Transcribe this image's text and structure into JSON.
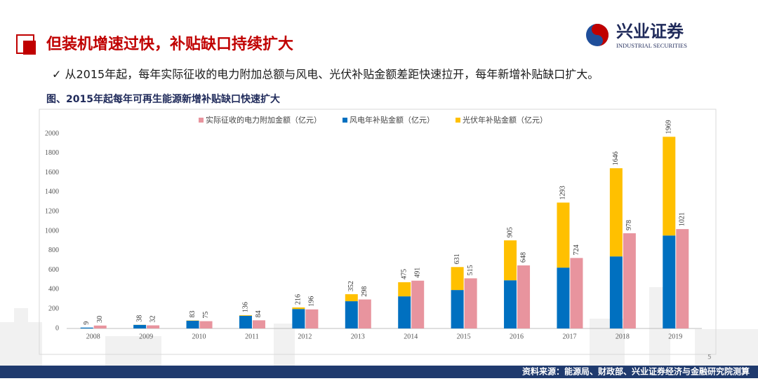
{
  "header": {
    "title": "但装机增速过快，补贴缺口持续扩大",
    "logo_name": "兴业证券",
    "logo_en": "INDUSTRIAL SECURITIES"
  },
  "bullet": "✓ 从2015年起，每年实际征收的电力附加总额与风电、光伏补贴金额差距快速拉开，每年新增补贴缺口扩大。",
  "chart_data": {
    "type": "bar",
    "title": "图、2015年起每年可再生能源新增补贴缺口快速扩大",
    "categories": [
      "2008",
      "2009",
      "2010",
      "2011",
      "2012",
      "2013",
      "2014",
      "2015",
      "2016",
      "2017",
      "2018",
      "2019"
    ],
    "series": [
      {
        "name": "实际征收的电力附加金额（亿元）",
        "color": "#e8949e",
        "values": [
          30,
          32,
          75,
          84,
          196,
          298,
          491,
          515,
          648,
          724,
          978,
          1021
        ]
      },
      {
        "name": "风电年补贴金额（亿元）",
        "color": "#0070c0",
        "stack": "subsidy",
        "values": [
          9,
          37,
          80,
          130,
          200,
          280,
          330,
          395,
          495,
          625,
          740,
          955
        ]
      },
      {
        "name": "光伏年补贴金额（亿元）",
        "color": "#ffc000",
        "stack": "subsidy",
        "values": [
          0,
          1,
          3,
          6,
          16,
          72,
          145,
          236,
          410,
          668,
          906,
          1014
        ]
      }
    ],
    "stack_totals": [
      9,
      38,
      83,
      136,
      216,
      352,
      475,
      631,
      905,
      1293,
      1646,
      1969
    ],
    "ylim": [
      0,
      2000
    ],
    "yticks": [
      0,
      200,
      400,
      600,
      800,
      1000,
      1200,
      1400,
      1600,
      1800,
      2000
    ],
    "grid": false,
    "legend": "top"
  },
  "footer": {
    "source": "资料来源：能源局、财政部、兴业证券经济与金融研究院测算",
    "page": "5"
  }
}
